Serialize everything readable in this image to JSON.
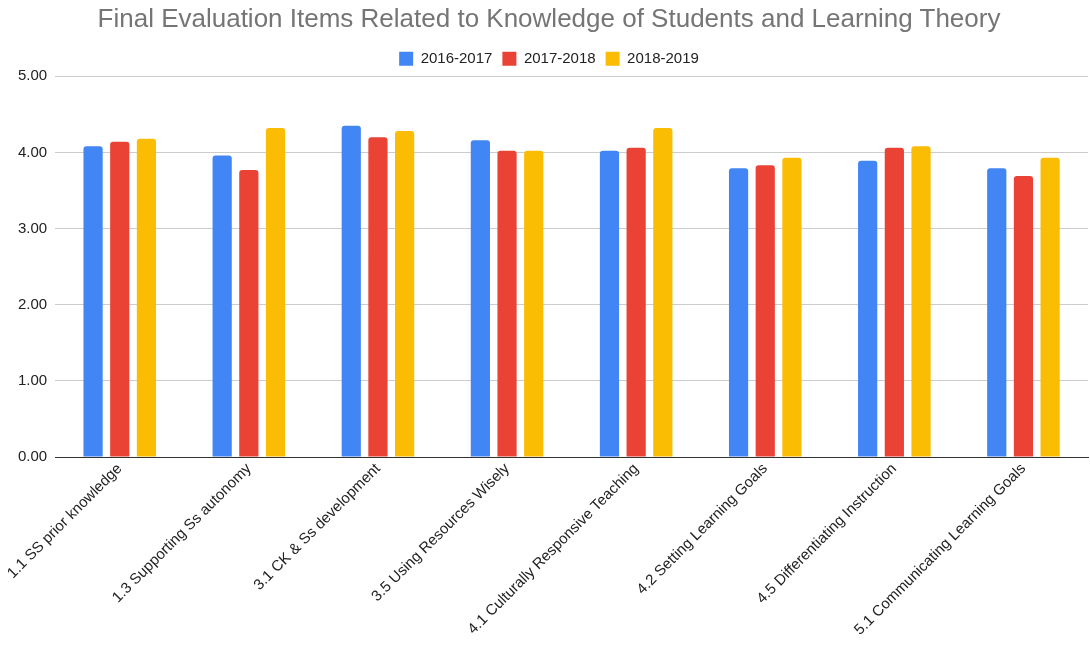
{
  "chart_data": {
    "type": "bar",
    "title": "Final Evaluation Items Related to Knowledge of Students and Learning Theory",
    "categories": [
      "1.1 SS prior knowledge",
      "1.3 Supporting Ss autonomy",
      "3.1 CK & Ss development",
      "3.5 Using Resources Wisely",
      "4.1 Culturally Responsive Teaching",
      "4.2 Setting Learning Goals",
      "4.5 Differentiating Instruction",
      "5.1 Communicating Learning Goals"
    ],
    "series": [
      {
        "name": "2016-2017",
        "color": "#4285f4",
        "values": [
          4.08,
          3.96,
          4.35,
          4.16,
          4.02,
          3.79,
          3.89,
          3.79
        ]
      },
      {
        "name": "2017-2018",
        "color": "#ea4335",
        "values": [
          4.14,
          3.77,
          4.2,
          4.02,
          4.06,
          3.83,
          4.06,
          3.69
        ]
      },
      {
        "name": "2018-2019",
        "color": "#fbbc04",
        "values": [
          4.18,
          4.32,
          4.28,
          4.02,
          4.32,
          3.93,
          4.08,
          3.93
        ]
      }
    ],
    "ylim": [
      0,
      5
    ],
    "yticks": [
      {
        "value": 0,
        "label": "0.00"
      },
      {
        "value": 1,
        "label": "1.00"
      },
      {
        "value": 2,
        "label": "2.00"
      },
      {
        "value": 3,
        "label": "3.00"
      },
      {
        "value": 4,
        "label": "4.00"
      },
      {
        "value": 5,
        "label": "5.00"
      }
    ],
    "grid": "y",
    "legend": "top"
  }
}
